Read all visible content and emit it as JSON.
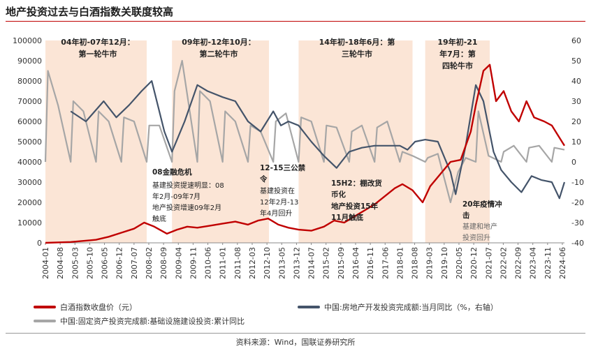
{
  "title": "地产投资过去与白酒指数关联度较高",
  "source": "资料来源：Wind，国联证券研究所",
  "colors": {
    "liquor": "#c00000",
    "realestate": "#44546a",
    "infra": "#a6a6a6",
    "era_band": "#fbe5d6"
  },
  "chart_data": {
    "type": "line",
    "left_axis": {
      "min": 0,
      "max": 100000,
      "ticks": [
        "0",
        "10000",
        "20000",
        "30000",
        "40000",
        "50000",
        "60000",
        "70000",
        "80000",
        "90000",
        "100000"
      ]
    },
    "right_axis": {
      "min": -40,
      "max": 60,
      "ticks": [
        "-40",
        "-30",
        "-20",
        "-10",
        "0",
        "10",
        "20",
        "30",
        "40",
        "50",
        "60"
      ]
    },
    "x_ticks": [
      "2004-01",
      "2004-08",
      "2005-03",
      "2005-10",
      "2006-05",
      "2006-12",
      "2007-07",
      "2008-02",
      "2008-09",
      "2009-04",
      "2009-11",
      "2010-06",
      "2011-01",
      "2011-08",
      "2012-03",
      "2012-10",
      "2013-05",
      "2013-12",
      "2014-07",
      "2015-02",
      "2015-09",
      "2016-04",
      "2016-11",
      "2017-06",
      "2018-01",
      "2018-08",
      "2019-03",
      "2019-10",
      "2020-05",
      "2020-12",
      "2021-07",
      "2022-02",
      "2022-09",
      "2023-04",
      "2023-11",
      "2024-06"
    ],
    "series": [
      {
        "name": "白酒指数收盘价（元）",
        "axis": "left",
        "color": "#c00000",
        "x": [
          2004.0,
          2005.0,
          2006.0,
          2006.5,
          2007.0,
          2007.5,
          2007.9,
          2008.3,
          2008.8,
          2009.2,
          2009.6,
          2010.0,
          2010.5,
          2011.0,
          2011.5,
          2012.0,
          2012.4,
          2012.8,
          2013.2,
          2013.6,
          2014.0,
          2014.5,
          2015.0,
          2015.4,
          2015.8,
          2016.2,
          2016.6,
          2017.0,
          2017.4,
          2017.8,
          2018.1,
          2018.5,
          2018.9,
          2019.2,
          2019.6,
          2020.0,
          2020.4,
          2020.8,
          2021.0,
          2021.3,
          2021.55,
          2021.8,
          2022.1,
          2022.4,
          2022.7,
          2023.0,
          2023.3,
          2023.7,
          2024.0,
          2024.3,
          2024.5
        ],
        "values": [
          0,
          400,
          1500,
          3000,
          5000,
          7000,
          10000,
          8000,
          4500,
          6500,
          8000,
          7500,
          8500,
          9500,
          10500,
          9000,
          11000,
          12000,
          9000,
          7500,
          6500,
          6000,
          8000,
          11000,
          10000,
          13000,
          16000,
          19000,
          23000,
          27000,
          29000,
          26000,
          20000,
          28000,
          34000,
          40000,
          41000,
          55000,
          68000,
          85000,
          88000,
          70000,
          75000,
          65000,
          60000,
          70000,
          62000,
          60000,
          58000,
          52000,
          48000
        ]
      },
      {
        "name": "中国:房地产开发投资完成额:当月同比（%，右轴）",
        "axis": "right",
        "color": "#44546a",
        "x": [
          2005.0,
          2005.6,
          2006.3,
          2006.8,
          2007.3,
          2007.8,
          2008.2,
          2008.7,
          2009.0,
          2009.5,
          2010.0,
          2010.4,
          2011.0,
          2011.5,
          2012.0,
          2012.5,
          2013.0,
          2013.3,
          2013.6,
          2014.0,
          2014.5,
          2015.0,
          2015.5,
          2016.0,
          2016.5,
          2017.0,
          2017.5,
          2018.0,
          2018.3,
          2018.6,
          2019.0,
          2019.5,
          2020.0,
          2020.2,
          2020.6,
          2021.0,
          2021.3,
          2021.7,
          2022.0,
          2022.4,
          2022.8,
          2023.2,
          2023.6,
          2024.0,
          2024.3,
          2024.5
        ],
        "values": [
          25,
          20,
          30,
          22,
          28,
          35,
          40,
          15,
          5,
          20,
          38,
          35,
          32,
          30,
          20,
          15,
          25,
          18,
          20,
          18,
          10,
          3,
          -3,
          5,
          7,
          8,
          8,
          8,
          6,
          10,
          11,
          10,
          -5,
          -16,
          8,
          38,
          30,
          5,
          -4,
          -10,
          -15,
          -7,
          -9,
          -10,
          -18,
          -10
        ]
      },
      {
        "name": "中国:固定资产投资完成额:基础设施建设投资:累计同比",
        "axis": "right",
        "color": "#a6a6a6",
        "x": [
          2004.0,
          2004.1,
          2004.5,
          2005.0,
          2005.1,
          2005.5,
          2006.0,
          2006.1,
          2006.5,
          2007.0,
          2007.1,
          2007.5,
          2008.0,
          2008.1,
          2008.5,
          2009.0,
          2009.1,
          2009.4,
          2010.0,
          2010.1,
          2010.5,
          2011.0,
          2011.1,
          2011.5,
          2012.0,
          2012.1,
          2012.5,
          2013.0,
          2013.1,
          2013.5,
          2014.0,
          2014.1,
          2014.5,
          2015.0,
          2015.1,
          2015.5,
          2016.0,
          2016.1,
          2016.5,
          2017.0,
          2017.1,
          2017.5,
          2018.0,
          2018.1,
          2018.5,
          2019.0,
          2019.1,
          2019.5,
          2020.0,
          2020.1,
          2020.3,
          2020.6,
          2021.0,
          2021.1,
          2021.5,
          2022.0,
          2022.1,
          2022.5,
          2023.0,
          2023.1,
          2023.5,
          2024.0,
          2024.1,
          2024.5
        ],
        "values": [
          0,
          45,
          28,
          0,
          30,
          25,
          0,
          25,
          20,
          0,
          22,
          20,
          0,
          18,
          18,
          0,
          35,
          50,
          0,
          35,
          30,
          0,
          25,
          20,
          0,
          18,
          15,
          0,
          20,
          24,
          0,
          22,
          20,
          0,
          18,
          17,
          0,
          15,
          18,
          0,
          17,
          20,
          0,
          5,
          3,
          0,
          2,
          4,
          -20,
          -15,
          -5,
          2,
          0,
          25,
          3,
          0,
          5,
          8,
          0,
          7,
          8,
          0,
          7,
          6
        ]
      }
    ]
  },
  "eras": [
    {
      "label1": "04年初-07年12月：",
      "label2": "第一轮牛市"
    },
    {
      "label1": "09年初-12年10月：",
      "label2": "第二轮牛市"
    },
    {
      "label1": "14年初-18年6月：第",
      "label2": "三轮牛市"
    },
    {
      "label1": "19年初-21",
      "label2": "年7月：第",
      "label3": "四轮牛市"
    }
  ],
  "annotations": {
    "a1": {
      "title": "08金融危机",
      "lines": [
        "基建投资提速明显：08",
        "年2月-09年7月",
        "地产投资增速09年2月",
        "触底"
      ]
    },
    "a2": {
      "title1": "12-15三公禁",
      "title2": "令",
      "lines": [
        "基建投资在",
        "12年2月-13",
        "年4月回升"
      ]
    },
    "a3": {
      "title1": "15H2：棚改货",
      "title2": "币化",
      "lines": [
        "地产投资15年",
        "11月触底"
      ]
    },
    "a4": {
      "title1": "20年疫情冲",
      "title2": "击",
      "lines": [
        "基建和地产",
        "投资回升"
      ]
    }
  },
  "legend": {
    "liquor": "白酒指数收盘价（元）",
    "realestate": "中国:房地产开发投资完成额:当月同比（%，右轴）",
    "infra": "中国:固定资产投资完成额:基础设施建设投资:累计同比"
  }
}
